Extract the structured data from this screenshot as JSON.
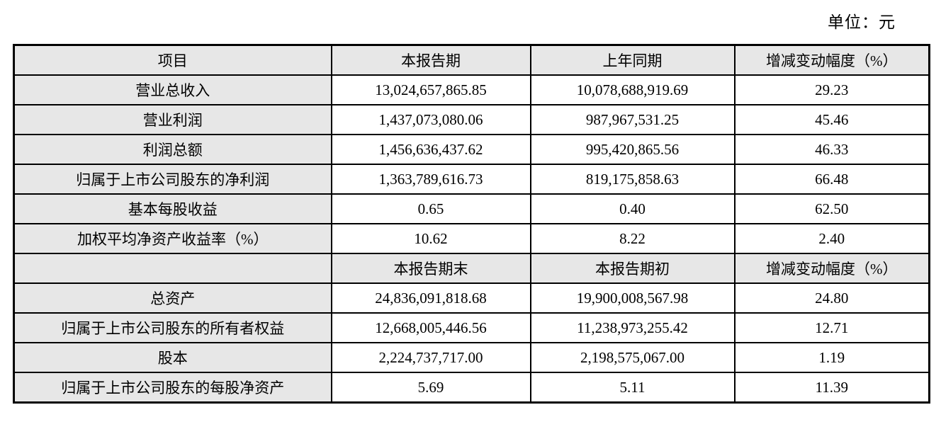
{
  "unit_label": "单位：元",
  "colors": {
    "header_bg": "#e7e7e7",
    "border": "#000000",
    "text": "#000000"
  },
  "table": {
    "header1": [
      "项目",
      "本报告期",
      "上年同期",
      "增减变动幅度（%）"
    ],
    "rows1": [
      [
        "营业总收入",
        "13,024,657,865.85",
        "10,078,688,919.69",
        "29.23"
      ],
      [
        "营业利润",
        "1,437,073,080.06",
        "987,967,531.25",
        "45.46"
      ],
      [
        "利润总额",
        "1,456,636,437.62",
        "995,420,865.56",
        "46.33"
      ],
      [
        "归属于上市公司股东的净利润",
        "1,363,789,616.73",
        "819,175,858.63",
        "66.48"
      ],
      [
        "基本每股收益",
        "0.65",
        "0.40",
        "62.50"
      ],
      [
        "加权平均净资产收益率（%）",
        "10.62",
        "8.22",
        "2.40"
      ]
    ],
    "header2": [
      "",
      "本报告期末",
      "本报告期初",
      "增减变动幅度（%）"
    ],
    "rows2": [
      [
        "总资产",
        "24,836,091,818.68",
        "19,900,008,567.98",
        "24.80"
      ],
      [
        "归属于上市公司股东的所有者权益",
        "12,668,005,446.56",
        "11,238,973,255.42",
        "12.71"
      ],
      [
        "股本",
        "2,224,737,717.00",
        "2,198,575,067.00",
        "1.19"
      ],
      [
        "归属于上市公司股东的每股净资产",
        "5.69",
        "5.11",
        "11.39"
      ]
    ]
  }
}
